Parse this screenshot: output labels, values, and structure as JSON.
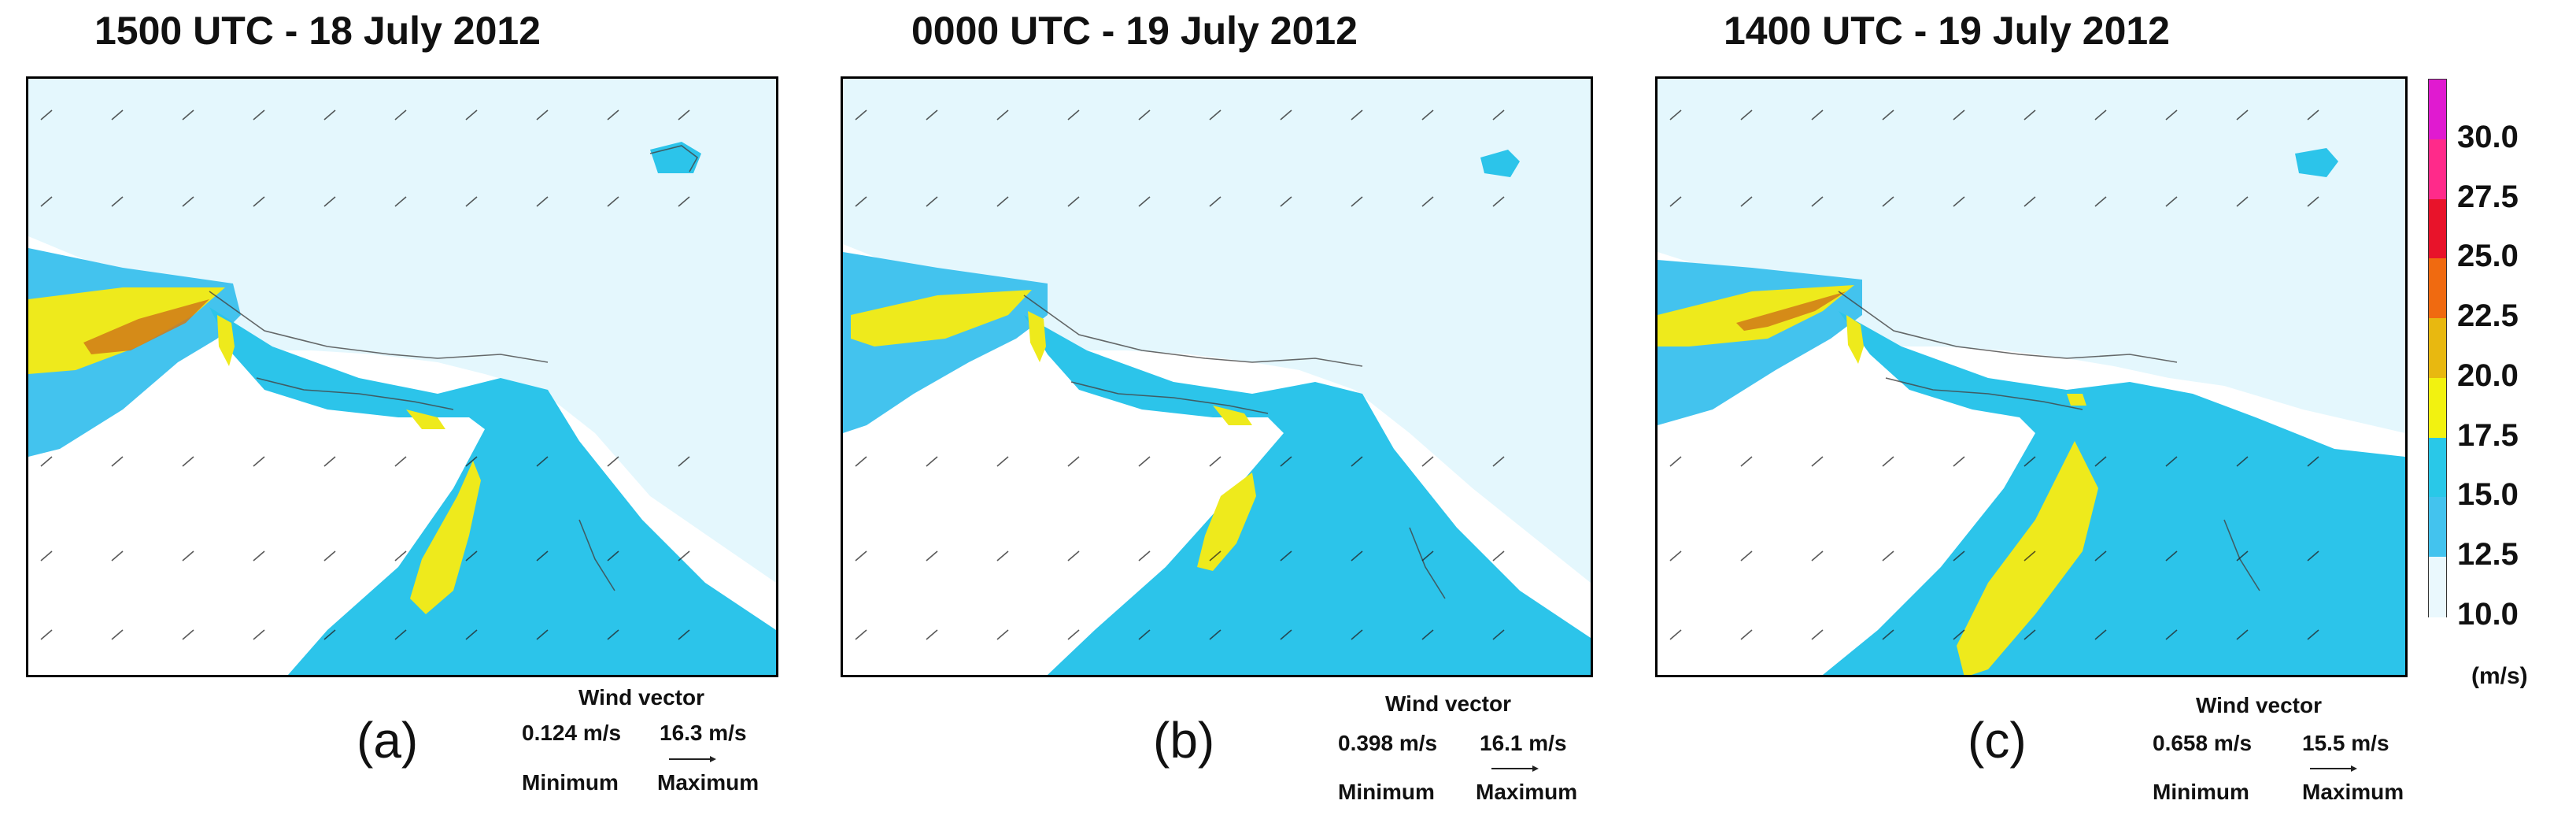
{
  "panels": [
    {
      "title": "1500 UTC - 18 July 2012",
      "letter": "(a)",
      "wind_vector": {
        "title": "Wind vector",
        "min_value": "0.124 m/s",
        "max_value": "16.3 m/s",
        "min_label": "Minimum",
        "max_label": "Maximum"
      }
    },
    {
      "title": "0000 UTC - 19 July 2012",
      "letter": "(b)",
      "wind_vector": {
        "title": "Wind vector",
        "min_value": "0.398 m/s",
        "max_value": "16.1 m/s",
        "min_label": "Minimum",
        "max_label": "Maximum"
      }
    },
    {
      "title": "1400 UTC - 19 July 2012",
      "letter": "(c)",
      "wind_vector": {
        "title": "Wind vector",
        "min_value": "0.658 m/s",
        "max_value": "15.5 m/s",
        "min_label": "Minimum",
        "max_label": "Maximum"
      }
    }
  ],
  "colorbar": {
    "unit": "(m/s)",
    "labels": [
      "30.0",
      "27.5",
      "25.0",
      "22.5",
      "20.0",
      "17.5",
      "15.0",
      "12.5",
      "10.0"
    ],
    "colors": [
      "#e01ad0",
      "#ff2a8a",
      "#e8132a",
      "#f06a10",
      "#e8b810",
      "#f2f210",
      "#29c8e8",
      "#43c3ee",
      "#eaf8fd"
    ]
  },
  "map_colors": {
    "background": "#ffffff",
    "band_10": "#e4f7fd",
    "band_12": "#3fc6ee",
    "band_15": "#2cc4ea",
    "band_17": "#eeea1c",
    "band_20": "#d8a420",
    "band_22": "#d07a18"
  }
}
